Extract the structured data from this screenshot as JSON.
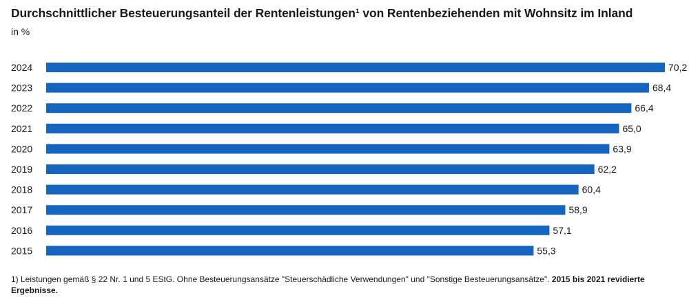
{
  "title": "Durchschnittlicher Besteuerungsanteil der Rentenleistungen¹ von Rentenbeziehenden mit Wohnsitz im Inland",
  "unit": "in %",
  "colors": {
    "bar": "#1565c0",
    "text": "#1a1a1a"
  },
  "chart_data": {
    "type": "bar",
    "orientation": "horizontal",
    "title": "Durchschnittlicher Besteuerungsanteil der Rentenleistungen¹ von Rentenbeziehenden mit Wohnsitz im Inland",
    "ylabel": "in %",
    "categories": [
      "2024",
      "2023",
      "2022",
      "2021",
      "2020",
      "2019",
      "2018",
      "2017",
      "2016",
      "2015"
    ],
    "values": [
      70.2,
      68.4,
      66.4,
      65.0,
      63.9,
      62.2,
      60.4,
      58.9,
      57.1,
      55.3
    ],
    "value_labels": [
      "70,2",
      "68,4",
      "66,4",
      "65,0",
      "63,9",
      "62,2",
      "60,4",
      "58,9",
      "57,1",
      "55,3"
    ],
    "xlim": [
      0,
      70.2
    ],
    "grid": false,
    "legend": "none"
  },
  "footnote": {
    "text": "1)  Leistungen gemäß § 22 Nr. 1 und 5 EStG. Ohne Besteuerungsansätze \"Steuerschädliche Verwendungen\" und \"Sonstige Besteuerungsansätze\". ",
    "bold": "2015 bis 2021 revidierte Ergebnisse."
  }
}
